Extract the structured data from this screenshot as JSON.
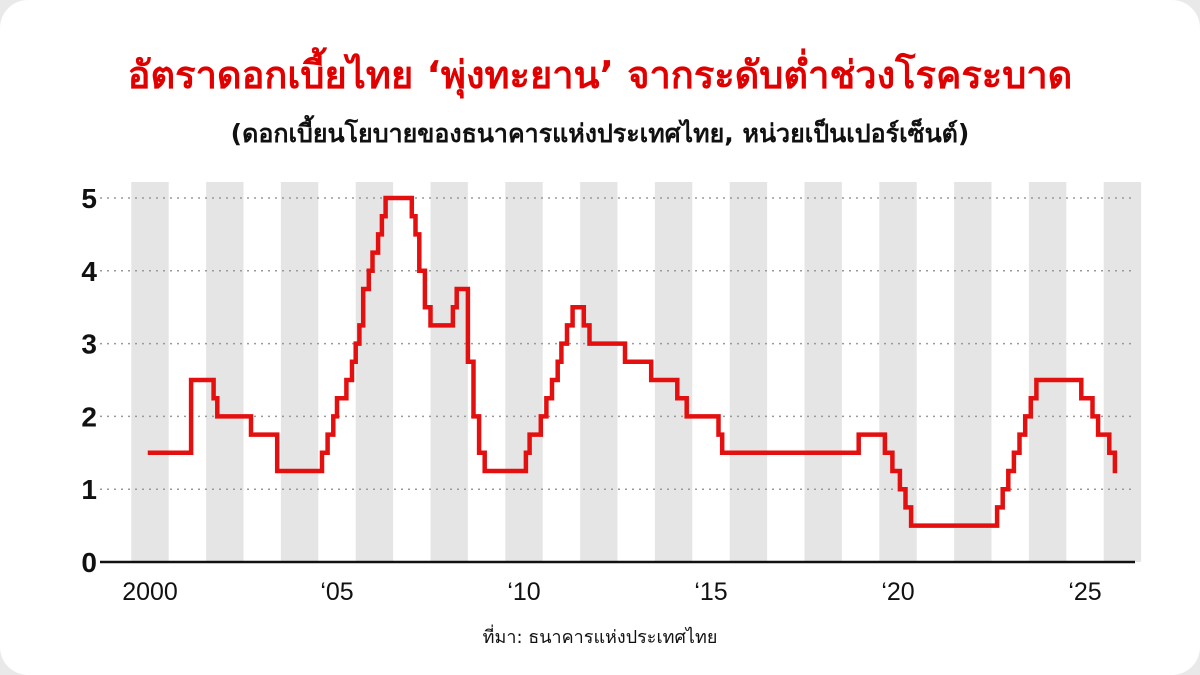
{
  "header": {
    "title": "อัตราดอกเบี้ยไทย ‘พุ่งทะยาน’ จากระดับต่ำช่วงโรคระบาด",
    "subtitle": "(ดอกเบี้ยนโยบายของธนาคารแห่งประเทศไทย, หน่วยเป็นเปอร์เซ็นต์)"
  },
  "footer": {
    "source": "ที่มา: ธนาคารแห่งประเทศไทย"
  },
  "colors": {
    "line": "#e41010",
    "title": "#e00000",
    "band": "#e5e5e5",
    "grid": "#9a9a9a"
  },
  "chart_data": {
    "type": "line",
    "title": "อัตราดอกเบี้ยไทย ‘พุ่งทะยาน’ จากระดับต่ำช่วงโรคระบาด",
    "subtitle": "(ดอกเบี้ยนโยบายของธนาคารแห่งประเทศไทย, หน่วยเป็นเปอร์เซ็นต์)",
    "xlabel": "",
    "ylabel": "",
    "xlim": [
      2000,
      2025.8
    ],
    "ylim": [
      0,
      5
    ],
    "x_ticks": [
      {
        "value": 2000,
        "label": "2000"
      },
      {
        "value": 2005,
        "label": "‘05"
      },
      {
        "value": 2010,
        "label": "‘10"
      },
      {
        "value": 2015,
        "label": "‘15"
      },
      {
        "value": 2020,
        "label": "‘20"
      },
      {
        "value": 2025,
        "label": "‘25"
      }
    ],
    "y_ticks": [
      0,
      1,
      2,
      3,
      4,
      5
    ],
    "grid": "horizontal dotted, alternating year bands",
    "legend": "none",
    "series": [
      {
        "step": true,
        "points": [
          [
            2000.0,
            1.5
          ],
          [
            2001.0,
            1.5
          ],
          [
            2001.1,
            2.5
          ],
          [
            2001.6,
            2.5
          ],
          [
            2001.7,
            2.25
          ],
          [
            2001.8,
            2.0
          ],
          [
            2002.6,
            2.0
          ],
          [
            2002.7,
            1.75
          ],
          [
            2003.3,
            1.75
          ],
          [
            2003.4,
            1.25
          ],
          [
            2004.5,
            1.25
          ],
          [
            2004.6,
            1.5
          ],
          [
            2004.75,
            1.75
          ],
          [
            2004.9,
            2.0
          ],
          [
            2005.0,
            2.25
          ],
          [
            2005.25,
            2.5
          ],
          [
            2005.4,
            2.75
          ],
          [
            2005.5,
            3.0
          ],
          [
            2005.6,
            3.25
          ],
          [
            2005.7,
            3.75
          ],
          [
            2005.85,
            4.0
          ],
          [
            2005.95,
            4.25
          ],
          [
            2006.1,
            4.5
          ],
          [
            2006.2,
            4.75
          ],
          [
            2006.3,
            5.0
          ],
          [
            2006.9,
            5.0
          ],
          [
            2007.0,
            4.75
          ],
          [
            2007.1,
            4.5
          ],
          [
            2007.2,
            4.0
          ],
          [
            2007.35,
            3.5
          ],
          [
            2007.5,
            3.25
          ],
          [
            2008.0,
            3.25
          ],
          [
            2008.05,
            3.25
          ],
          [
            2008.1,
            3.5
          ],
          [
            2008.2,
            3.75
          ],
          [
            2008.4,
            3.75
          ],
          [
            2008.5,
            2.75
          ],
          [
            2008.65,
            2.0
          ],
          [
            2008.8,
            1.5
          ],
          [
            2008.95,
            1.25
          ],
          [
            2009.95,
            1.25
          ],
          [
            2010.05,
            1.5
          ],
          [
            2010.15,
            1.75
          ],
          [
            2010.45,
            2.0
          ],
          [
            2010.6,
            2.25
          ],
          [
            2010.75,
            2.5
          ],
          [
            2010.9,
            2.75
          ],
          [
            2011.0,
            3.0
          ],
          [
            2011.15,
            3.25
          ],
          [
            2011.3,
            3.5
          ],
          [
            2011.6,
            3.25
          ],
          [
            2011.75,
            3.0
          ],
          [
            2012.6,
            3.0
          ],
          [
            2012.7,
            2.75
          ],
          [
            2013.3,
            2.75
          ],
          [
            2013.4,
            2.5
          ],
          [
            2014.0,
            2.5
          ],
          [
            2014.1,
            2.25
          ],
          [
            2014.35,
            2.0
          ],
          [
            2015.05,
            2.0
          ],
          [
            2015.2,
            1.75
          ],
          [
            2015.3,
            1.5
          ],
          [
            2018.85,
            1.5
          ],
          [
            2018.95,
            1.75
          ],
          [
            2019.55,
            1.75
          ],
          [
            2019.65,
            1.5
          ],
          [
            2019.85,
            1.25
          ],
          [
            2020.05,
            1.0
          ],
          [
            2020.2,
            0.75
          ],
          [
            2020.35,
            0.5
          ],
          [
            2022.55,
            0.5
          ],
          [
            2022.65,
            0.75
          ],
          [
            2022.8,
            1.0
          ],
          [
            2022.95,
            1.25
          ],
          [
            2023.1,
            1.5
          ],
          [
            2023.25,
            1.75
          ],
          [
            2023.4,
            2.0
          ],
          [
            2023.55,
            2.25
          ],
          [
            2023.7,
            2.5
          ],
          [
            2024.8,
            2.5
          ],
          [
            2024.9,
            2.25
          ],
          [
            2025.2,
            2.0
          ],
          [
            2025.35,
            1.75
          ],
          [
            2025.65,
            1.5
          ],
          [
            2025.8,
            1.25
          ]
        ]
      }
    ]
  }
}
